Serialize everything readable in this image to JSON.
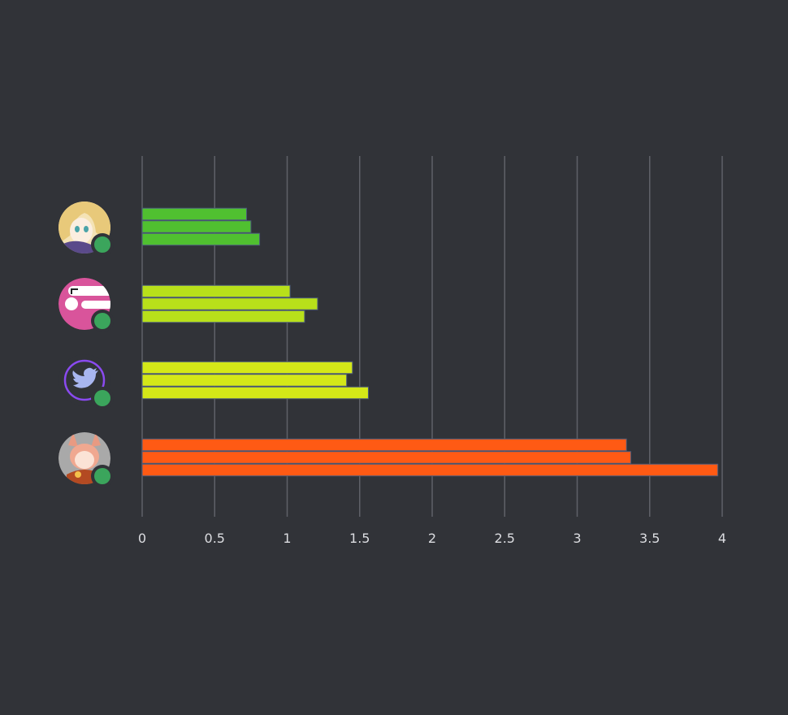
{
  "chart_data": {
    "type": "bar",
    "orientation": "horizontal",
    "title": "",
    "xlabel": "",
    "ylabel": "",
    "xlim": [
      0,
      4
    ],
    "x_ticks": [
      "0",
      "0.5",
      "1",
      "1.5",
      "2",
      "2.5",
      "3",
      "3.5",
      "4"
    ],
    "grid": "vertical",
    "legend": "none",
    "categories": [
      {
        "avatar": "anime-blonde-girl-avatar",
        "status": "online",
        "color": "#50c030",
        "values": [
          0.72,
          0.75,
          0.81
        ]
      },
      {
        "avatar": "pink-logo-avatar",
        "status": "online",
        "color": "#b8e01a",
        "values": [
          1.02,
          1.21,
          1.12
        ]
      },
      {
        "avatar": "twitter-bird-avatar",
        "status": "online",
        "color": "#d4e818",
        "values": [
          1.45,
          1.41,
          1.56
        ]
      },
      {
        "avatar": "anime-fox-girl-avatar",
        "status": "online",
        "color": "#ff5a14",
        "values": [
          3.34,
          3.37,
          3.97
        ]
      }
    ]
  },
  "colors": {
    "background": "#313338",
    "status_online": "#3ba55c",
    "grid": "#5f6168",
    "tick_text": "#dcdde1"
  }
}
